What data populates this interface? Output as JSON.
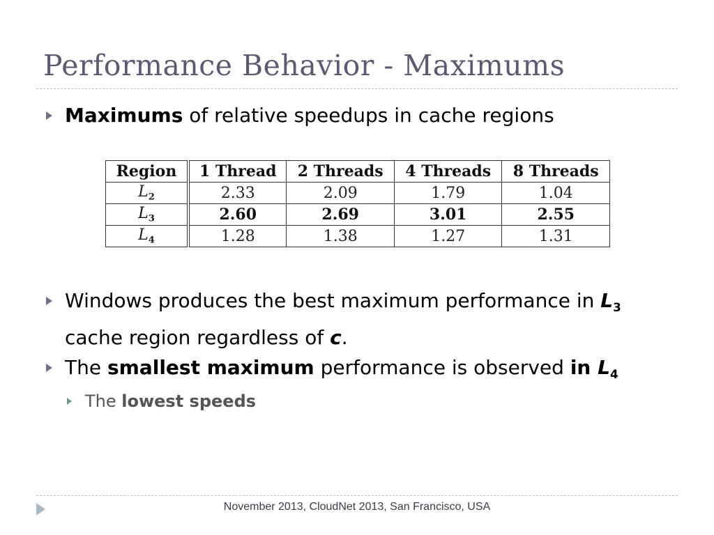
{
  "slide": {
    "title": "Performance Behavior - Maximums",
    "bullet1": {
      "bold": "Maximums",
      "rest": " of relative speedups in cache regions"
    },
    "table": {
      "headers": [
        "Region",
        "1 Thread",
        "2 Threads",
        "4 Threads",
        "8 Threads"
      ],
      "rows": [
        {
          "region": "L",
          "sub": "2",
          "values": [
            "2.33",
            "2.09",
            "1.79",
            "1.04"
          ]
        },
        {
          "region": "L",
          "sub": "3",
          "values": [
            "2.60",
            "2.69",
            "3.01",
            "2.55"
          ]
        },
        {
          "region": "L",
          "sub": "4",
          "values": [
            "1.28",
            "1.38",
            "1.27",
            "1.31"
          ]
        }
      ]
    },
    "bullet2": {
      "line1": "Windows produces the best maximum performance in ",
      "l": "L",
      "l_sub": "3",
      "line2_prefix": "cache region regardless of ",
      "c": "c",
      "line2_suffix": "."
    },
    "bullet3": {
      "prefix": "The ",
      "bold": "smallest maximum",
      "middle": " performance is observed ",
      "bold2": "in ",
      "l": "L",
      "l_sub": "4"
    },
    "sub_bullet": {
      "prefix": "The ",
      "bold": "lowest speeds"
    },
    "footer": "November 2013, CloudNet 2013, San Francisco, USA"
  }
}
